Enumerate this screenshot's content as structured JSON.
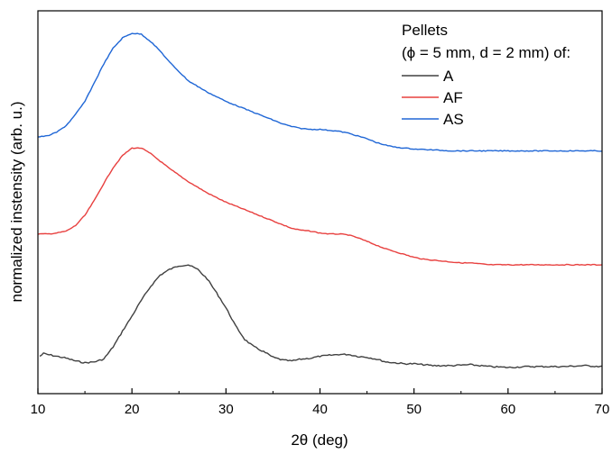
{
  "chart_data": {
    "type": "line",
    "xlabel": "2θ (deg)",
    "ylabel": "normalized instensity (arb. u.)",
    "xlim": [
      10,
      70
    ],
    "x_ticks": [
      "10",
      "20",
      "30",
      "40",
      "50",
      "60",
      "70"
    ],
    "y_ticks_labeled": false,
    "grid": false,
    "legend": {
      "placement": "top-right",
      "title_line1": "Pellets",
      "title_line2": "(ϕ = 5 mm, d = 2 mm) of:"
    },
    "y_units": "arbitrary (normalized, vertically offset)",
    "series": [
      {
        "name": "A",
        "color": "#404040",
        "points": [
          [
            10.2,
            0.15
          ],
          [
            10.6,
            0.18
          ],
          [
            11,
            0.17
          ],
          [
            12,
            0.15
          ],
          [
            13,
            0.13
          ],
          [
            14,
            0.1
          ],
          [
            15,
            0.08
          ],
          [
            16,
            0.09
          ],
          [
            17,
            0.12
          ],
          [
            18,
            0.25
          ],
          [
            19,
            0.42
          ],
          [
            20,
            0.58
          ],
          [
            21,
            0.75
          ],
          [
            22,
            0.9
          ],
          [
            23,
            1.02
          ],
          [
            24,
            1.08
          ],
          [
            25,
            1.12
          ],
          [
            26,
            1.13
          ],
          [
            27,
            1.08
          ],
          [
            28,
            0.98
          ],
          [
            29,
            0.83
          ],
          [
            30,
            0.67
          ],
          [
            31,
            0.48
          ],
          [
            32,
            0.33
          ],
          [
            33,
            0.25
          ],
          [
            34,
            0.2
          ],
          [
            35,
            0.14
          ],
          [
            36,
            0.11
          ],
          [
            37,
            0.1
          ],
          [
            38,
            0.12
          ],
          [
            39,
            0.13
          ],
          [
            40,
            0.15
          ],
          [
            41,
            0.16
          ],
          [
            42,
            0.17
          ],
          [
            43,
            0.17
          ],
          [
            44,
            0.15
          ],
          [
            45,
            0.14
          ],
          [
            46,
            0.12
          ],
          [
            47,
            0.09
          ],
          [
            48,
            0.08
          ],
          [
            49,
            0.07
          ],
          [
            50,
            0.07
          ],
          [
            52,
            0.05
          ],
          [
            54,
            0.05
          ],
          [
            56,
            0.06
          ],
          [
            58,
            0.04
          ],
          [
            60,
            0.03
          ],
          [
            62,
            0.04
          ],
          [
            64,
            0.04
          ],
          [
            66,
            0.04
          ],
          [
            68,
            0.05
          ],
          [
            70,
            0.04
          ]
        ]
      },
      {
        "name": "AF",
        "color": "#e8403f",
        "points": [
          [
            10,
            1.46
          ],
          [
            11,
            1.46
          ],
          [
            12,
            1.47
          ],
          [
            13,
            1.49
          ],
          [
            14,
            1.55
          ],
          [
            15,
            1.66
          ],
          [
            16,
            1.82
          ],
          [
            17,
            2.0
          ],
          [
            18,
            2.17
          ],
          [
            19,
            2.3
          ],
          [
            20,
            2.38
          ],
          [
            21,
            2.38
          ],
          [
            22,
            2.32
          ],
          [
            23,
            2.24
          ],
          [
            24,
            2.16
          ],
          [
            25,
            2.09
          ],
          [
            26,
            2.02
          ],
          [
            27,
            1.96
          ],
          [
            28,
            1.9
          ],
          [
            29,
            1.85
          ],
          [
            30,
            1.8
          ],
          [
            31,
            1.76
          ],
          [
            32,
            1.72
          ],
          [
            33,
            1.68
          ],
          [
            34,
            1.64
          ],
          [
            35,
            1.6
          ],
          [
            36,
            1.56
          ],
          [
            37,
            1.52
          ],
          [
            38,
            1.5
          ],
          [
            39,
            1.49
          ],
          [
            40,
            1.47
          ],
          [
            41,
            1.46
          ],
          [
            42,
            1.46
          ],
          [
            43,
            1.45
          ],
          [
            44,
            1.42
          ],
          [
            45,
            1.38
          ],
          [
            46,
            1.34
          ],
          [
            47,
            1.3
          ],
          [
            48,
            1.27
          ],
          [
            49,
            1.24
          ],
          [
            50,
            1.21
          ],
          [
            51,
            1.19
          ],
          [
            52,
            1.18
          ],
          [
            53,
            1.17
          ],
          [
            54,
            1.16
          ],
          [
            55,
            1.15
          ],
          [
            56,
            1.15
          ],
          [
            57,
            1.14
          ],
          [
            58,
            1.13
          ],
          [
            59,
            1.13
          ],
          [
            60,
            1.13
          ],
          [
            62,
            1.13
          ],
          [
            64,
            1.13
          ],
          [
            66,
            1.13
          ],
          [
            68,
            1.13
          ],
          [
            70,
            1.13
          ]
        ]
      },
      {
        "name": "AS",
        "color": "#2067d6",
        "points": [
          [
            10,
            2.5
          ],
          [
            11,
            2.51
          ],
          [
            12,
            2.55
          ],
          [
            13,
            2.62
          ],
          [
            14,
            2.74
          ],
          [
            15,
            2.88
          ],
          [
            16,
            3.08
          ],
          [
            17,
            3.28
          ],
          [
            18,
            3.45
          ],
          [
            19,
            3.56
          ],
          [
            20,
            3.61
          ],
          [
            21,
            3.6
          ],
          [
            22,
            3.52
          ],
          [
            23,
            3.42
          ],
          [
            24,
            3.3
          ],
          [
            25,
            3.2
          ],
          [
            26,
            3.1
          ],
          [
            27,
            3.04
          ],
          [
            28,
            2.98
          ],
          [
            29,
            2.93
          ],
          [
            30,
            2.88
          ],
          [
            31,
            2.84
          ],
          [
            32,
            2.8
          ],
          [
            33,
            2.76
          ],
          [
            34,
            2.72
          ],
          [
            35,
            2.68
          ],
          [
            36,
            2.64
          ],
          [
            37,
            2.61
          ],
          [
            38,
            2.59
          ],
          [
            39,
            2.58
          ],
          [
            40,
            2.58
          ],
          [
            41,
            2.57
          ],
          [
            42,
            2.56
          ],
          [
            43,
            2.54
          ],
          [
            44,
            2.51
          ],
          [
            45,
            2.48
          ],
          [
            46,
            2.44
          ],
          [
            47,
            2.41
          ],
          [
            48,
            2.39
          ],
          [
            49,
            2.38
          ],
          [
            50,
            2.37
          ],
          [
            52,
            2.36
          ],
          [
            54,
            2.35
          ],
          [
            56,
            2.35
          ],
          [
            58,
            2.35
          ],
          [
            60,
            2.35
          ],
          [
            62,
            2.35
          ],
          [
            64,
            2.35
          ],
          [
            66,
            2.35
          ],
          [
            68,
            2.35
          ],
          [
            70,
            2.35
          ]
        ]
      }
    ]
  }
}
